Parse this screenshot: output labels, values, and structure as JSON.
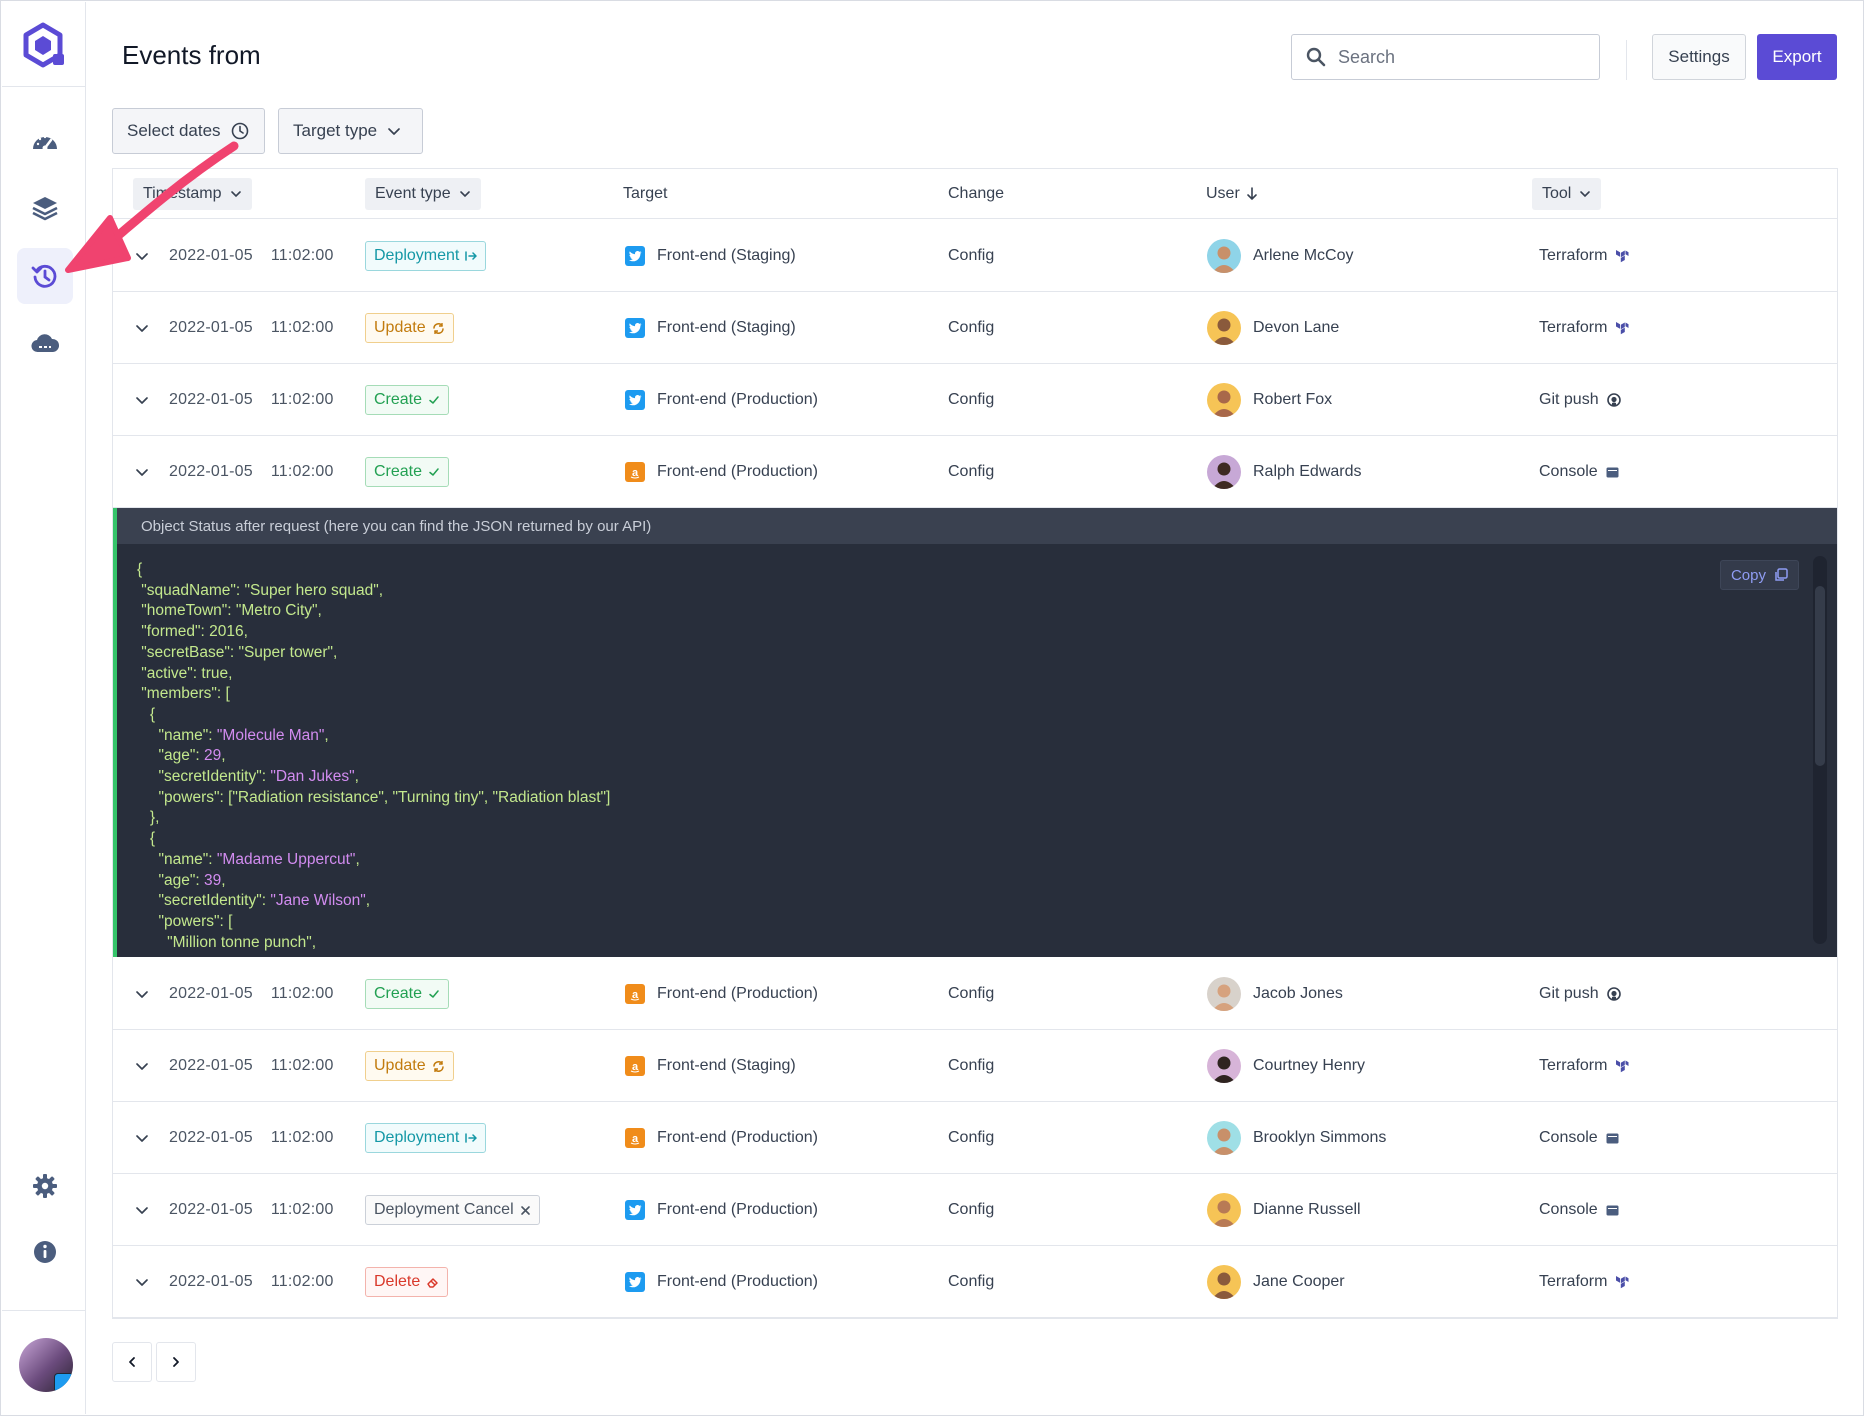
{
  "header": {
    "title": "Events from",
    "search_placeholder": "Search",
    "settings_label": "Settings",
    "export_label": "Export"
  },
  "filters": {
    "dates_label": "Select dates",
    "target_type_label": "Target type"
  },
  "columns": {
    "timestamp": "Timestamp",
    "event_type": "Event type",
    "target": "Target",
    "change": "Change",
    "user": "User",
    "tool": "Tool"
  },
  "rows": [
    {
      "date": "2022-01-05",
      "time": "11:02:00",
      "event": "Deployment",
      "event_kind": "deploy",
      "target_icon": "twitter-icon",
      "target": "Front-end (Staging)",
      "change": "Config",
      "user": "Arlene McCoy",
      "tool": "Terraform",
      "tool_icon": "terraform-icon"
    },
    {
      "date": "2022-01-05",
      "time": "11:02:00",
      "event": "Update",
      "event_kind": "update",
      "target_icon": "twitter-icon",
      "target": "Front-end (Staging)",
      "change": "Config",
      "user": "Devon Lane",
      "tool": "Terraform",
      "tool_icon": "terraform-icon"
    },
    {
      "date": "2022-01-05",
      "time": "11:02:00",
      "event": "Create",
      "event_kind": "create",
      "target_icon": "twitter-icon",
      "target": "Front-end (Production)",
      "change": "Config",
      "user": "Robert Fox",
      "tool": "Git push",
      "tool_icon": "github-icon"
    },
    {
      "date": "2022-01-05",
      "time": "11:02:00",
      "event": "Create",
      "event_kind": "create",
      "target_icon": "amazon-icon",
      "target": "Front-end (Production)",
      "change": "Config",
      "user": "Ralph Edwards",
      "tool": "Console",
      "tool_icon": "console-icon"
    },
    {
      "date": "2022-01-05",
      "time": "11:02:00",
      "event": "Create",
      "event_kind": "create",
      "target_icon": "amazon-icon",
      "target": "Front-end (Production)",
      "change": "Config",
      "user": "Jacob Jones",
      "tool": "Git push",
      "tool_icon": "github-icon"
    },
    {
      "date": "2022-01-05",
      "time": "11:02:00",
      "event": "Update",
      "event_kind": "update",
      "target_icon": "amazon-icon",
      "target": "Front-end (Staging)",
      "change": "Config",
      "user": "Courtney Henry",
      "tool": "Terraform",
      "tool_icon": "terraform-icon"
    },
    {
      "date": "2022-01-05",
      "time": "11:02:00",
      "event": "Deployment",
      "event_kind": "deploy",
      "target_icon": "amazon-icon",
      "target": "Front-end (Production)",
      "change": "Config",
      "user": "Brooklyn Simmons",
      "tool": "Console",
      "tool_icon": "console-icon"
    },
    {
      "date": "2022-01-05",
      "time": "11:02:00",
      "event": "Deployment Cancel",
      "event_kind": "cancel",
      "target_icon": "twitter-icon",
      "target": "Front-end (Production)",
      "change": "Config",
      "user": "Dianne Russell",
      "tool": "Console",
      "tool_icon": "console-icon"
    },
    {
      "date": "2022-01-05",
      "time": "11:02:00",
      "event": "Delete",
      "event_kind": "delete",
      "target_icon": "twitter-icon",
      "target": "Front-end (Production)",
      "change": "Config",
      "user": "Jane Cooper",
      "tool": "Terraform",
      "tool_icon": "terraform-icon"
    }
  ],
  "json_panel": {
    "title": "Object Status after request (here you can find the JSON returned by our API)",
    "copy_label": "Copy",
    "lines": [
      {
        "t": "{",
        "v": ""
      },
      {
        "t": " \"squadName\": \"Super hero squad\",",
        "v": ""
      },
      {
        "t": " \"homeTown\": \"Metro City\",",
        "v": ""
      },
      {
        "t": " \"formed\": 2016,",
        "v": ""
      },
      {
        "t": " \"secretBase\": \"Super tower\",",
        "v": ""
      },
      {
        "t": " \"active\": true,",
        "v": ""
      },
      {
        "t": " \"members\": [",
        "v": ""
      },
      {
        "t": "   {",
        "v": ""
      },
      {
        "t": "     \"name\": ",
        "v": "\"Molecule Man\"",
        "e": ","
      },
      {
        "t": "     \"age\": ",
        "v": "29",
        "e": ","
      },
      {
        "t": "     \"secretIdentity\": ",
        "v": "\"Dan Jukes\"",
        "e": ","
      },
      {
        "t": "     \"powers\": [\"Radiation resistance\", \"Turning tiny\", \"Radiation blast\"]",
        "v": ""
      },
      {
        "t": "   },",
        "v": ""
      },
      {
        "t": "   {",
        "v": ""
      },
      {
        "t": "     \"name\": ",
        "v": "\"Madame Uppercut\"",
        "e": ","
      },
      {
        "t": "     \"age\": ",
        "v": "39",
        "e": ","
      },
      {
        "t": "     \"secretIdentity\": ",
        "v": "\"Jane Wilson\"",
        "e": ","
      },
      {
        "t": "     \"powers\": [",
        "v": ""
      },
      {
        "t": "       \"Million tonne punch\",",
        "v": ""
      }
    ]
  },
  "colors": {
    "accent": "#5b4bd5",
    "arrow": "#f0436f",
    "json_bg": "#282e3b",
    "json_border": "#35c46a"
  }
}
